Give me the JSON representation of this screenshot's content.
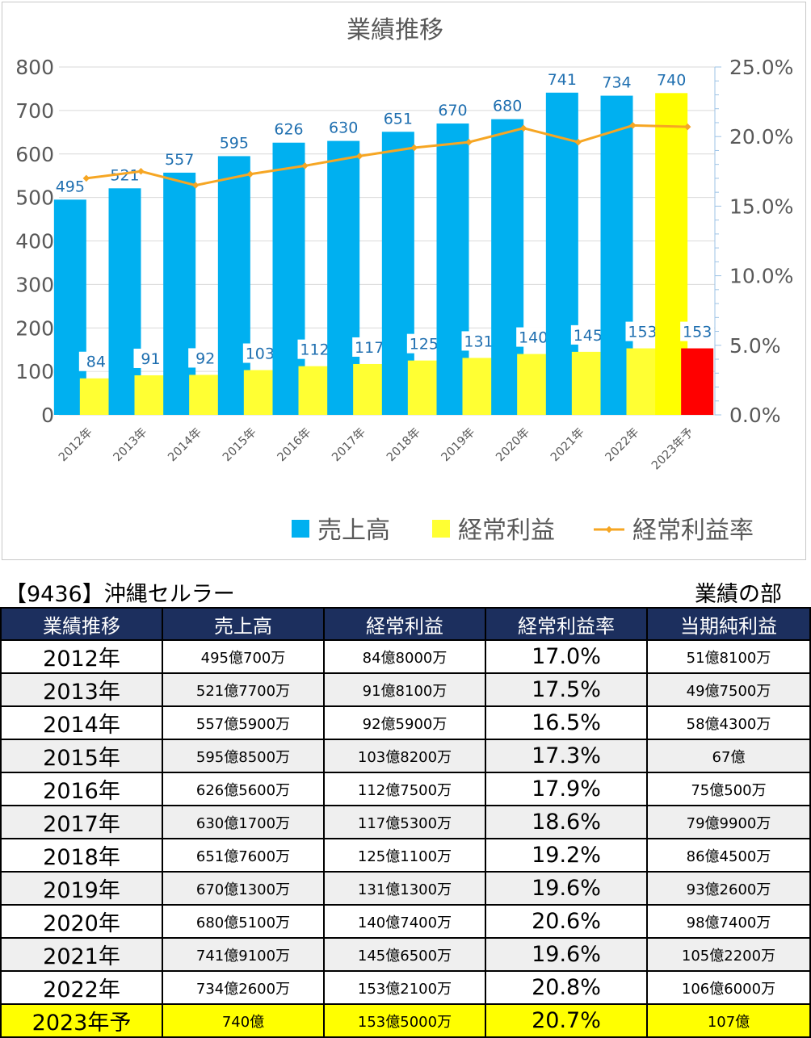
{
  "chart_data": {
    "type": "bar",
    "title": "業績推移",
    "categories": [
      "2012年",
      "2013年",
      "2014年",
      "2015年",
      "2016年",
      "2017年",
      "2018年",
      "2019年",
      "2020年",
      "2021年",
      "2022年",
      "2023年予"
    ],
    "series": [
      {
        "name": "売上高",
        "type": "bar",
        "axis": "left",
        "color": "#00b0f0",
        "values": [
          495,
          521,
          557,
          595,
          626,
          630,
          651,
          670,
          680,
          741,
          734,
          740
        ]
      },
      {
        "name": "経常利益",
        "type": "bar",
        "axis": "left",
        "color": "#ffff33",
        "values": [
          84,
          91,
          92,
          103,
          112,
          117,
          125,
          131,
          140,
          145,
          153,
          153
        ]
      },
      {
        "name": "経常利益率",
        "type": "line",
        "axis": "right",
        "color": "#f6a623",
        "values": [
          17.0,
          17.5,
          16.5,
          17.3,
          17.9,
          18.6,
          19.2,
          19.6,
          20.6,
          19.6,
          20.8,
          20.7
        ]
      }
    ],
    "forecast_colors": {
      "売上高": "#ffff00",
      "経常利益": "#ff0000"
    },
    "ylim_left": [
      0,
      800
    ],
    "yticks_left": [
      "0",
      "100",
      "200",
      "300",
      "400",
      "500",
      "600",
      "700",
      "800"
    ],
    "ylim_right": [
      0,
      25
    ],
    "yticks_right": [
      "0.0%",
      "5.0%",
      "10.0%",
      "15.0%",
      "20.0%",
      "25.0%"
    ],
    "grid": true,
    "legend_position": "bottom-right"
  },
  "table": {
    "title": "【9436】沖縄セルラー",
    "section": "業績の部",
    "columns": [
      "業績推移",
      "売上高",
      "経常利益",
      "経常利益率",
      "当期純利益"
    ],
    "rows": [
      {
        "year": "2012年",
        "sales": "495億700万",
        "ordinary": "84億8000万",
        "ratio": "17.0%",
        "net": "51億8100万"
      },
      {
        "year": "2013年",
        "sales": "521億7700万",
        "ordinary": "91億8100万",
        "ratio": "17.5%",
        "net": "49億7500万"
      },
      {
        "year": "2014年",
        "sales": "557億5900万",
        "ordinary": "92億5900万",
        "ratio": "16.5%",
        "net": "58億4300万"
      },
      {
        "year": "2015年",
        "sales": "595億8500万",
        "ordinary": "103億8200万",
        "ratio": "17.3%",
        "net": "67億"
      },
      {
        "year": "2016年",
        "sales": "626億5600万",
        "ordinary": "112億7500万",
        "ratio": "17.9%",
        "net": "75億500万"
      },
      {
        "year": "2017年",
        "sales": "630億1700万",
        "ordinary": "117億5300万",
        "ratio": "18.6%",
        "net": "79億9900万"
      },
      {
        "year": "2018年",
        "sales": "651億7600万",
        "ordinary": "125億1100万",
        "ratio": "19.2%",
        "net": "86億4500万"
      },
      {
        "year": "2019年",
        "sales": "670億1300万",
        "ordinary": "131億1300万",
        "ratio": "19.6%",
        "net": "93億2600万"
      },
      {
        "year": "2020年",
        "sales": "680億5100万",
        "ordinary": "140億7400万",
        "ratio": "20.6%",
        "net": "98億7400万"
      },
      {
        "year": "2021年",
        "sales": "741億9100万",
        "ordinary": "145億6500万",
        "ratio": "19.6%",
        "net": "105億2200万"
      },
      {
        "year": "2022年",
        "sales": "734億2600万",
        "ordinary": "153億2100万",
        "ratio": "20.8%",
        "net": "106億6000万"
      },
      {
        "year": "2023年予",
        "sales": "740億",
        "ordinary": "153億5000万",
        "ratio": "20.7%",
        "net": "107億"
      }
    ]
  }
}
